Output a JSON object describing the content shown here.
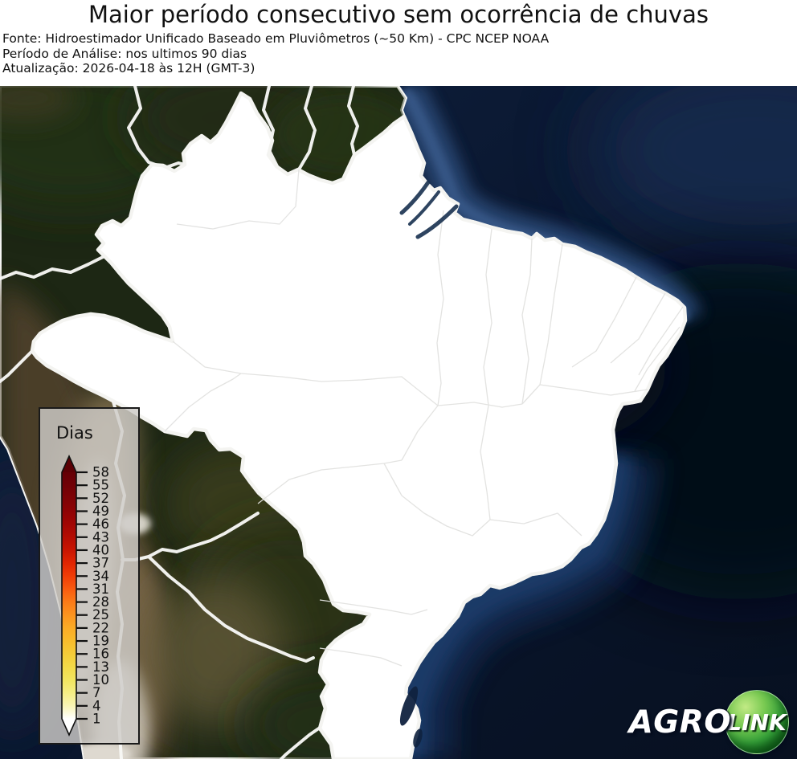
{
  "header": {
    "title": "Maior período consecutivo sem ocorrência de chuvas",
    "source_line": "Fonte: Hidroestimador Unificado Baseado em Pluviômetros (~50 Km) - CPC NCEP NOAA",
    "period_line": "Período de Análise: nos ultimos 90 dias",
    "update_line": "Atualização: 2026-04-18 às 12H (GMT-3)"
  },
  "legend": {
    "title": "Dias",
    "ticks": [
      58,
      55,
      52,
      49,
      46,
      43,
      40,
      37,
      34,
      31,
      28,
      25,
      22,
      19,
      16,
      13,
      10,
      7,
      4,
      1
    ],
    "scale": [
      {
        "value": 58,
        "color": "#650005"
      },
      {
        "value": 55,
        "color": "#710106"
      },
      {
        "value": 52,
        "color": "#7f0306"
      },
      {
        "value": 49,
        "color": "#8f0305"
      },
      {
        "value": 46,
        "color": "#a10604"
      },
      {
        "value": 43,
        "color": "#b40d03"
      },
      {
        "value": 40,
        "color": "#c91502"
      },
      {
        "value": 37,
        "color": "#e12502"
      },
      {
        "value": 34,
        "color": "#f03d07"
      },
      {
        "value": 31,
        "color": "#f95c10"
      },
      {
        "value": 28,
        "color": "#fb7b18"
      },
      {
        "value": 25,
        "color": "#fc941f"
      },
      {
        "value": 22,
        "color": "#fbab26"
      },
      {
        "value": 19,
        "color": "#f8bc2c"
      },
      {
        "value": 16,
        "color": "#f5cc38"
      },
      {
        "value": 13,
        "color": "#f3da48"
      },
      {
        "value": 10,
        "color": "#f2e55f"
      },
      {
        "value": 7,
        "color": "#f5ee85"
      },
      {
        "value": 4,
        "color": "#f9f5b5"
      },
      {
        "value": 1,
        "color": "#ffffff"
      }
    ],
    "extend_over_color": "#5c0004",
    "extend_under_color": "#ffffff"
  },
  "chart_data": {
    "type": "choropleth-map",
    "title": "Maior período consecutivo sem ocorrência de chuvas",
    "colorbar_label": "Dias",
    "colorbar_ticks": [
      58,
      55,
      52,
      49,
      46,
      43,
      40,
      37,
      34,
      31,
      28,
      25,
      22,
      19,
      16,
      13,
      10,
      7,
      4,
      1
    ],
    "colorbar_range": [
      1,
      58
    ],
    "region": "Brasil",
    "observation": "Todo o território do Brasil aparece em branco (classe mínima, ~1 dia sem chuva)"
  },
  "map_colors": {
    "region_fill": "#ffffff",
    "state_border": "#e2e2e0",
    "country_border": "#f8f8f6",
    "ocean_deep": "#071020",
    "ocean_shelf": "#2a4976",
    "land_forest": "#1d2714",
    "andes_brown": "#4e3f2b"
  },
  "logo": {
    "part1": "AGRO",
    "part2": "LINK"
  }
}
